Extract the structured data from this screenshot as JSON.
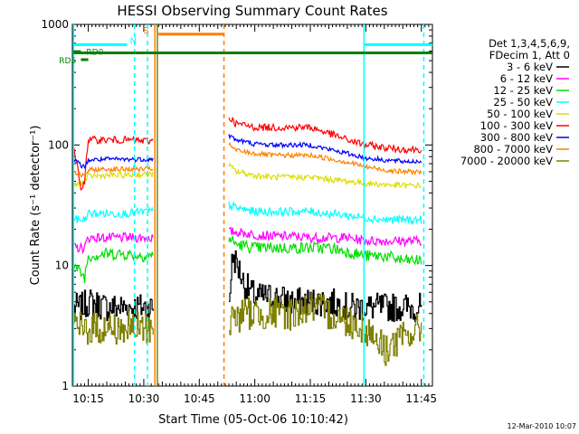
{
  "chart_data": {
    "type": "line",
    "title": "HESSI Observing Summary Count Rates",
    "xlabel": "Start Time (05-Oct-06 10:10:42)",
    "ylabel": "Count Rate (s⁻¹ detector⁻¹)",
    "yscale": "log",
    "ylim": [
      1,
      1000
    ],
    "xlim": [
      "10:10:42",
      "11:48:00"
    ],
    "y_ticks": [
      "1",
      "10",
      "100",
      "1000"
    ],
    "x_ticks": [
      "10:15",
      "10:30",
      "10:45",
      "11:00",
      "11:15",
      "11:30",
      "11:45"
    ],
    "legend_header": [
      "Det 1,3,4,5,6,9,",
      "FDecim 1, Att 0"
    ],
    "series": [
      {
        "name": "3 - 6 keV",
        "color": "#000000",
        "x": [
          "10:11",
          "10:13",
          "10:15",
          "10:20",
          "10:25",
          "10:30",
          "10:32",
          "10:53",
          "10:54",
          "10:57",
          "11:00",
          "11:05",
          "11:10",
          "11:15",
          "11:20",
          "11:25",
          "11:30",
          "11:35",
          "11:40",
          "11:45"
        ],
        "y": [
          4.5,
          4.5,
          5,
          4.5,
          4.5,
          4.5,
          4.5,
          5,
          12,
          7,
          5.5,
          5.5,
          5,
          5,
          5,
          4.5,
          4.5,
          4.5,
          4.5,
          4.5
        ]
      },
      {
        "name": "6 - 12 keV",
        "color": "#ff00ff",
        "x": [
          "10:11",
          "10:14",
          "10:15",
          "10:20",
          "10:25",
          "10:30",
          "10:32",
          "10:53",
          "10:55",
          "11:00",
          "11:05",
          "11:10",
          "11:15",
          "11:20",
          "11:25",
          "11:30",
          "11:35",
          "11:40",
          "11:45"
        ],
        "y": [
          14,
          14,
          17,
          17,
          17,
          17,
          17,
          19,
          19,
          18,
          17.5,
          17.5,
          17,
          17,
          17,
          16,
          16,
          16,
          16
        ]
      },
      {
        "name": "12 - 25 keV",
        "color": "#00dd00",
        "x": [
          "10:11",
          "10:14",
          "10:15",
          "10:20",
          "10:25",
          "10:30",
          "10:32",
          "10:53",
          "10:55",
          "11:00",
          "11:05",
          "11:10",
          "11:15",
          "11:20",
          "11:25",
          "11:30",
          "11:35",
          "11:40",
          "11:45"
        ],
        "y": [
          10,
          8,
          12,
          12.5,
          12.5,
          12,
          12,
          17,
          15,
          14,
          14,
          14,
          14,
          14,
          13,
          12,
          12,
          11,
          11
        ]
      },
      {
        "name": "25 - 50 keV",
        "color": "#00ffff",
        "x": [
          "10:11",
          "10:14",
          "10:15",
          "10:20",
          "10:25",
          "10:30",
          "10:32",
          "10:53",
          "10:55",
          "11:00",
          "11:05",
          "11:10",
          "11:15",
          "11:20",
          "11:25",
          "11:30",
          "11:35",
          "11:40",
          "11:45"
        ],
        "y": [
          24,
          24,
          27,
          27,
          27,
          28,
          28,
          32,
          30,
          28,
          28,
          28,
          28,
          27,
          26,
          25,
          24,
          24,
          24
        ]
      },
      {
        "name": "50 - 100 keV",
        "color": "#dddd00",
        "x": [
          "10:11",
          "10:14",
          "10:15",
          "10:20",
          "10:25",
          "10:30",
          "10:32",
          "10:53",
          "10:55",
          "11:00",
          "11:05",
          "11:10",
          "11:15",
          "11:20",
          "11:25",
          "11:30",
          "11:35",
          "11:40",
          "11:45"
        ],
        "y": [
          45,
          50,
          55,
          56,
          56,
          57,
          57,
          68,
          60,
          56,
          54,
          54,
          54,
          52,
          50,
          48,
          47,
          46,
          46
        ]
      },
      {
        "name": "100 - 300 keV",
        "color": "#ff0000",
        "x": [
          "10:11",
          "10:13",
          "10:14",
          "10:15",
          "10:20",
          "10:25",
          "10:30",
          "10:32",
          "10:53",
          "10:55",
          "11:00",
          "11:05",
          "11:10",
          "11:15",
          "11:20",
          "11:25",
          "11:30",
          "11:35",
          "11:40",
          "11:45"
        ],
        "y": [
          95,
          40,
          50,
          110,
          110,
          110,
          108,
          108,
          170,
          150,
          140,
          140,
          140,
          140,
          125,
          110,
          100,
          95,
          92,
          92
        ]
      },
      {
        "name": "300 - 800 keV",
        "color": "#0000ff",
        "x": [
          "10:11",
          "10:14",
          "10:15",
          "10:20",
          "10:25",
          "10:30",
          "10:32",
          "10:53",
          "10:55",
          "11:00",
          "11:05",
          "11:10",
          "11:15",
          "11:20",
          "11:25",
          "11:30",
          "11:35",
          "11:40",
          "11:45"
        ],
        "y": [
          75,
          65,
          75,
          76,
          76,
          76,
          76,
          120,
          110,
          102,
          100,
          100,
          100,
          92,
          85,
          78,
          75,
          73,
          73
        ]
      },
      {
        "name": "800 - 7000 keV",
        "color": "#ff8000",
        "x": [
          "10:11",
          "10:14",
          "10:15",
          "10:20",
          "10:25",
          "10:30",
          "10:32",
          "10:53",
          "10:55",
          "11:00",
          "11:05",
          "11:10",
          "11:15",
          "11:20",
          "11:25",
          "11:30",
          "11:35",
          "11:40",
          "11:45"
        ],
        "y": [
          60,
          55,
          62,
          63,
          63,
          63,
          63,
          100,
          90,
          85,
          82,
          82,
          82,
          77,
          72,
          66,
          62,
          60,
          60
        ]
      },
      {
        "name": "7000 - 20000 keV",
        "color": "#808000",
        "x": [
          "10:11",
          "10:15",
          "10:20",
          "10:25",
          "10:30",
          "10:32",
          "10:53",
          "10:57",
          "11:00",
          "11:05",
          "11:10",
          "11:15",
          "11:20",
          "11:25",
          "11:30",
          "11:35",
          "11:40",
          "11:45"
        ],
        "y": [
          3,
          3,
          3,
          3,
          3,
          3,
          3.5,
          4,
          4,
          4,
          4,
          4.5,
          4,
          3.5,
          3,
          2,
          2.5,
          3
        ]
      }
    ],
    "annotations": [
      {
        "text": "S",
        "color": "#ff8000"
      },
      {
        "text": "N",
        "color": "#00ffff"
      },
      {
        "text": "RD0",
        "color": "#008000"
      },
      {
        "text": "RD5",
        "color": "#008000"
      }
    ],
    "footer_text": "12-Mar-2010 10:07"
  }
}
